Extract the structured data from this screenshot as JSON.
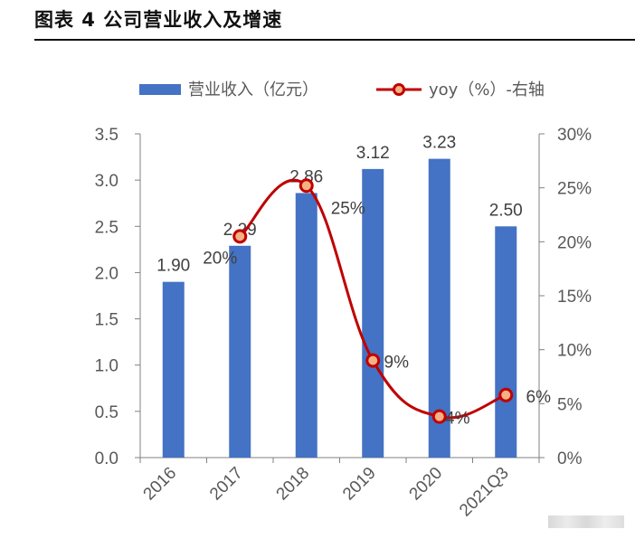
{
  "figure_title": "图表 4 公司营业收入及增速",
  "colors": {
    "bar": "#4472C4",
    "line": "#C00000",
    "marker_fill": "#F4B183",
    "axis": "#808080"
  },
  "chart_data": {
    "type": "bar+line",
    "categories": [
      "2016",
      "2017",
      "2018",
      "2019",
      "2020",
      "2021Q3"
    ],
    "series": [
      {
        "name": "营业收入（亿元）",
        "type": "bar",
        "axis": "left",
        "values": [
          1.9,
          2.29,
          2.86,
          3.12,
          3.23,
          2.5
        ],
        "labels": [
          "1.90",
          "2.29",
          "2.86",
          "3.12",
          "3.23",
          "2.50"
        ]
      },
      {
        "name": "yoy（%）-右轴",
        "type": "line",
        "axis": "right",
        "smooth": true,
        "values": [
          null,
          20.5,
          25.2,
          9,
          3.8,
          5.8
        ],
        "labels": [
          "",
          "20%",
          "25%",
          "9%",
          "4%",
          "6%"
        ]
      }
    ],
    "y_left": {
      "min": 0,
      "max": 3.5,
      "step": 0.5,
      "ticks": [
        "0.0",
        "0.5",
        "1.0",
        "1.5",
        "2.0",
        "2.5",
        "3.0",
        "3.5"
      ]
    },
    "y_right": {
      "min": 0,
      "max": 30,
      "step": 5,
      "ticks": [
        "0%",
        "5%",
        "10%",
        "15%",
        "20%",
        "25%",
        "30%"
      ]
    },
    "legend": {
      "placement": "top",
      "bar_label": "营业收入（亿元）",
      "line_label": "yoy（%）-右轴"
    }
  }
}
